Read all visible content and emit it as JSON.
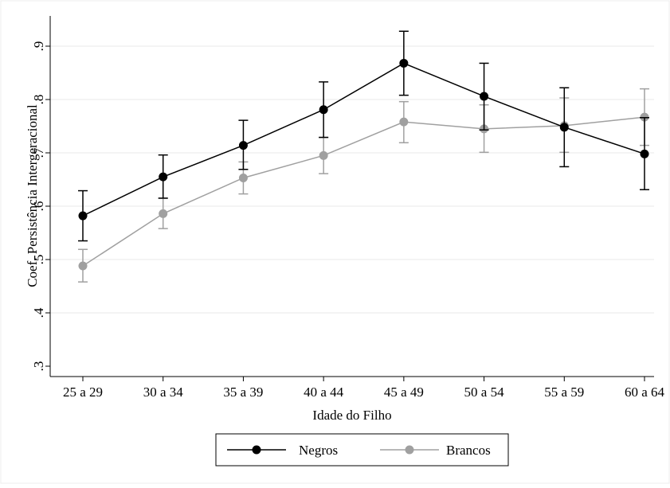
{
  "chart_data": {
    "type": "line",
    "categories": [
      "25 a 29",
      "30 a 34",
      "35 a 39",
      "40 a 44",
      "45 a 49",
      "50 a 54",
      "55 a 59",
      "60 a 64"
    ],
    "xlabel": "Idade do Filho",
    "ylabel": "Coef. Persistência Intergeracional",
    "ylim": [
      0.3,
      0.9
    ],
    "yticks": [
      0.3,
      0.4,
      0.5,
      0.6,
      0.7,
      0.8,
      0.9
    ],
    "ytick_labels": [
      ".3",
      ".4",
      ".5",
      ".6",
      ".7",
      ".8",
      ".9"
    ],
    "grid": true,
    "legend_position": "bottom",
    "series": [
      {
        "name": "Negros",
        "color": "#000000",
        "values": [
          0.582,
          0.655,
          0.714,
          0.781,
          0.868,
          0.806,
          0.748,
          0.698
        ],
        "ci_low": [
          0.535,
          0.615,
          0.669,
          0.729,
          0.808,
          0.743,
          0.674,
          0.631
        ],
        "ci_high": [
          0.629,
          0.696,
          0.761,
          0.833,
          0.928,
          0.868,
          0.822,
          0.766
        ]
      },
      {
        "name": "Brancos",
        "color": "#a0a0a0",
        "values": [
          0.488,
          0.586,
          0.653,
          0.695,
          0.758,
          0.745,
          0.751,
          0.767
        ],
        "ci_low": [
          0.458,
          0.558,
          0.623,
          0.661,
          0.719,
          0.701,
          0.701,
          0.714
        ],
        "ci_high": [
          0.519,
          0.615,
          0.683,
          0.729,
          0.796,
          0.79,
          0.803,
          0.82
        ]
      }
    ]
  }
}
